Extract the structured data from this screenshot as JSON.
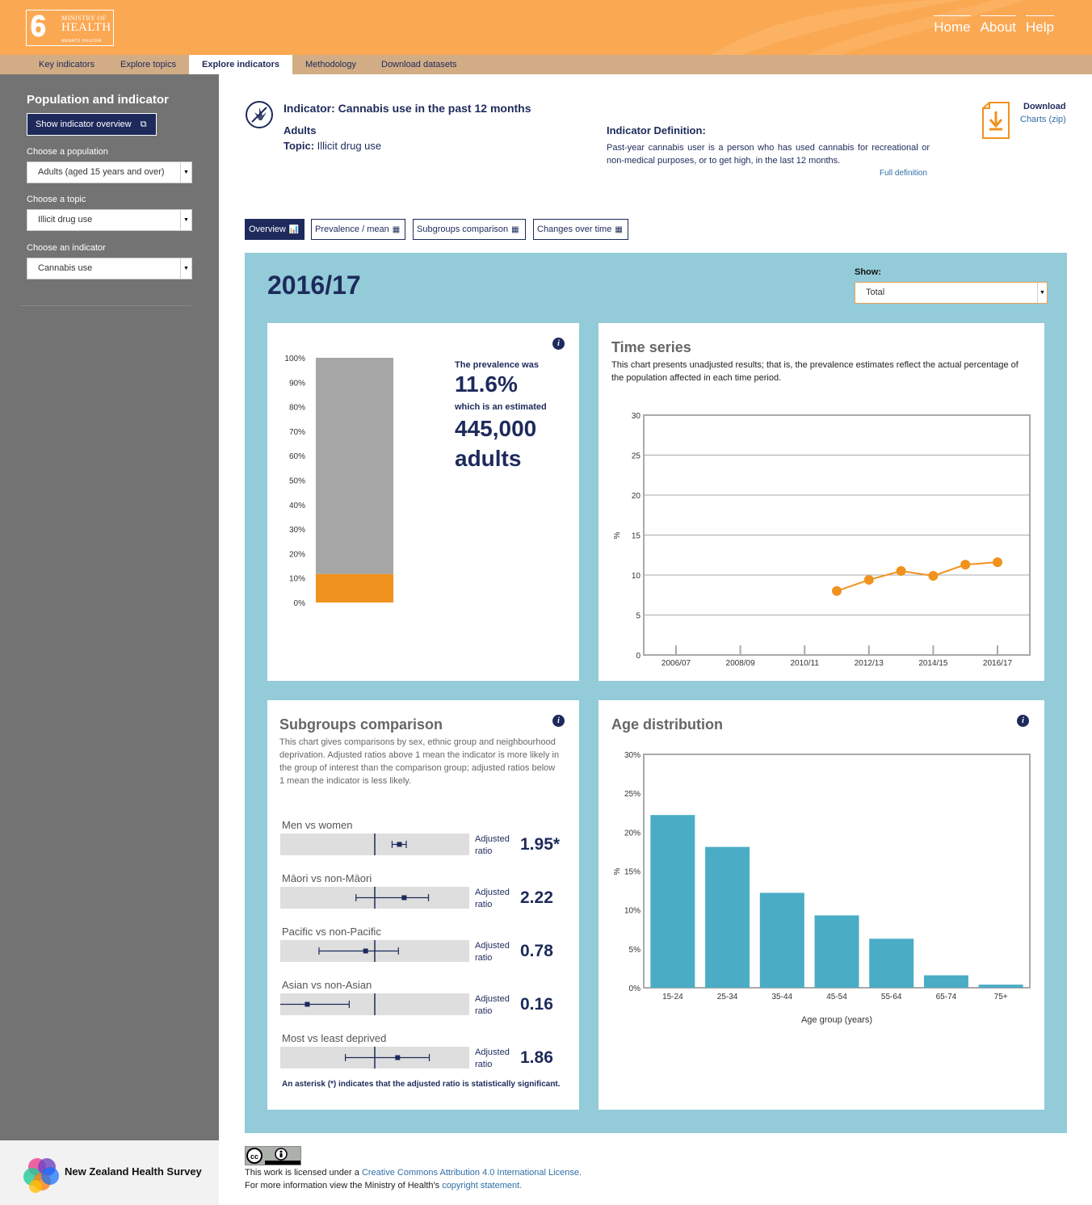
{
  "header": {
    "logo": {
      "line1": "MINISTRY OF",
      "line2": "HEALTH",
      "line3": "MANATŪ HAUORA"
    },
    "nav": [
      "Home",
      "About",
      "Help"
    ]
  },
  "tabs": [
    {
      "label": "Key indicators",
      "active": false
    },
    {
      "label": "Explore topics",
      "active": false
    },
    {
      "label": "Explore indicators",
      "active": true
    },
    {
      "label": "Methodology",
      "active": false
    },
    {
      "label": "Download datasets",
      "active": false
    }
  ],
  "sidebar": {
    "title": "Population and indicator",
    "overview_button": "Show indicator overview",
    "population_label": "Choose a population",
    "population_value": "Adults (aged 15 years and over)",
    "topic_label": "Choose a topic",
    "topic_value": "Illicit drug use",
    "indicator_label": "Choose an indicator",
    "indicator_value": "Cannabis use",
    "footer_text": "New Zealand Health Survey"
  },
  "indicator": {
    "title": "Indicator: Cannabis use in the past 12 months",
    "population": "Adults",
    "topic_label": "Topic:",
    "topic_value": "Illicit drug use",
    "definition_title": "Indicator Definition:",
    "definition_text": "Past-year cannabis user is a person who has used cannabis for recreational or non-medical purposes, or to get high, in the last 12 months.",
    "full_definition": "Full definition"
  },
  "download": {
    "title": "Download",
    "subtitle": "Charts (zip)"
  },
  "view_buttons": [
    {
      "label": "Overview",
      "active": true
    },
    {
      "label": "Prevalence / mean",
      "active": false
    },
    {
      "label": "Subgroups comparison",
      "active": false
    },
    {
      "label": "Changes over time",
      "active": false
    }
  ],
  "panel": {
    "year": "2016/17",
    "show_label": "Show:",
    "show_value": "Total"
  },
  "prevalence": {
    "line1": "The prevalence was",
    "value": "11.6%",
    "line2": "which is an estimated",
    "count": "445,000",
    "unit": "adults",
    "axis_ticks": [
      "100%",
      "90%",
      "80%",
      "70%",
      "60%",
      "50%",
      "40%",
      "30%",
      "20%",
      "10%",
      "0%"
    ]
  },
  "time_series": {
    "title": "Time series",
    "description": "This chart presents unadjusted results; that is, the prevalence estimates reflect the actual percentage of the population affected in each time period."
  },
  "subgroups": {
    "title": "Subgroups comparison",
    "description": "This chart gives comparisons by sex, ethnic group and neighbourhood deprivation. Adjusted ratios above 1 mean the indicator is more likely in the group of interest than the comparison group; adjusted ratios below 1 mean the indicator is less likely.",
    "adjusted_label": "Adjusted ratio",
    "items": [
      {
        "label": "Men vs women",
        "value": "1.95*",
        "ratio": 1.95
      },
      {
        "label": "Māori vs non-Māori",
        "value": "2.22",
        "ratio": 2.22
      },
      {
        "label": "Pacific vs non-Pacific",
        "value": "0.78",
        "ratio": 0.78
      },
      {
        "label": "Asian vs non-Asian",
        "value": "0.16",
        "ratio": 0.16
      },
      {
        "label": "Most vs least deprived",
        "value": "1.86",
        "ratio": 1.86
      }
    ],
    "note": "An asterisk (*) indicates that the adjusted ratio is statistically significant."
  },
  "age_distribution": {
    "title": "Age distribution"
  },
  "license": {
    "line1_prefix": "This work is licensed under a ",
    "line1_link": "Creative Commons Attribution 4.0 International License.",
    "line2_prefix": "For more information view the Ministry of Health's ",
    "line2_link": "copyright statement."
  },
  "chart_data": [
    {
      "type": "bar",
      "categories": [
        "Total"
      ],
      "values": [
        11.6
      ],
      "ylim": [
        0,
        100
      ]
    },
    {
      "type": "line",
      "title": "Time series",
      "x": [
        "2011/12",
        "2012/13",
        "2013/14",
        "2014/15",
        "2015/16",
        "2016/17"
      ],
      "x_ticks": [
        "2006/07",
        "2008/09",
        "2010/11",
        "2012/13",
        "2014/15",
        "2016/17"
      ],
      "values": [
        8.0,
        9.4,
        10.5,
        9.9,
        11.3,
        11.6
      ],
      "ylabel": "%",
      "ylim": [
        0,
        30
      ],
      "y_ticks": [
        0,
        5,
        10,
        15,
        20,
        25,
        30
      ],
      "grid": true,
      "color": "#f0921e"
    },
    {
      "type": "bar",
      "title": "Age distribution",
      "categories": [
        "15-24",
        "25-34",
        "35-44",
        "45-54",
        "55-64",
        "65-74",
        "75+"
      ],
      "values": [
        22.2,
        18.1,
        12.2,
        9.3,
        6.3,
        1.6,
        0.4
      ],
      "xlabel": "Age group (years)",
      "ylabel": "%",
      "ylim": [
        0,
        30
      ],
      "y_ticks": [
        "0%",
        "5%",
        "10%",
        "15%",
        "20%",
        "25%",
        "30%"
      ],
      "color": "#4bacc6"
    }
  ]
}
